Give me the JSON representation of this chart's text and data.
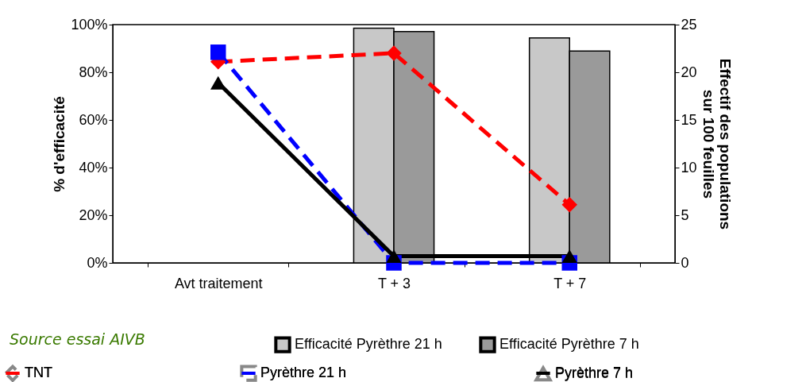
{
  "chart_data": {
    "type": "bar",
    "categories": [
      "Avt traitement",
      "T + 3",
      "T + 7"
    ],
    "ylabel": "% d'efficacité",
    "y2label": "Effectif des populations sur 100 feuilles",
    "ylim": [
      0,
      100
    ],
    "yticks": [
      {
        "value": 0,
        "label": "0%"
      },
      {
        "value": 20,
        "label": "20%"
      },
      {
        "value": 40,
        "label": "40%"
      },
      {
        "value": 60,
        "label": "60%"
      },
      {
        "value": 80,
        "label": "80%"
      },
      {
        "value": 100,
        "label": "100%"
      }
    ],
    "y2lim": [
      0,
      25
    ],
    "y2ticks": [
      0,
      5,
      10,
      15,
      20,
      25
    ],
    "series": [
      {
        "name": "Efficacité Pyrèthre 21 h",
        "color": "#c8c8c8",
        "values": [
          null,
          98.5,
          94.4
        ]
      },
      {
        "name": "Efficacité Pyrèthre 7 h",
        "color": "#9a9a9a",
        "values": [
          null,
          97.1,
          88.9
        ]
      },
      {
        "name": "TNT",
        "type": "line",
        "axis": "y2",
        "color": "#ff0000",
        "marker": "diamond",
        "line_style": "dashed",
        "values": [
          21.1,
          22.0,
          6.1
        ]
      },
      {
        "name": "Pyrèthre 21 h",
        "type": "line",
        "axis": "y2",
        "color": "#0000ff",
        "marker": "square",
        "line_style": "dashed",
        "values": [
          22.1,
          0,
          0
        ]
      },
      {
        "name": "Pyrèthre 7 h",
        "type": "line",
        "axis": "y2",
        "color": "#000000",
        "marker": "triangle",
        "line_style": "solid",
        "values": [
          18.9,
          0.7,
          0.7
        ]
      }
    ],
    "legend": "bottom",
    "grid": false,
    "annotations": [
      "Source essai AIVB"
    ]
  }
}
